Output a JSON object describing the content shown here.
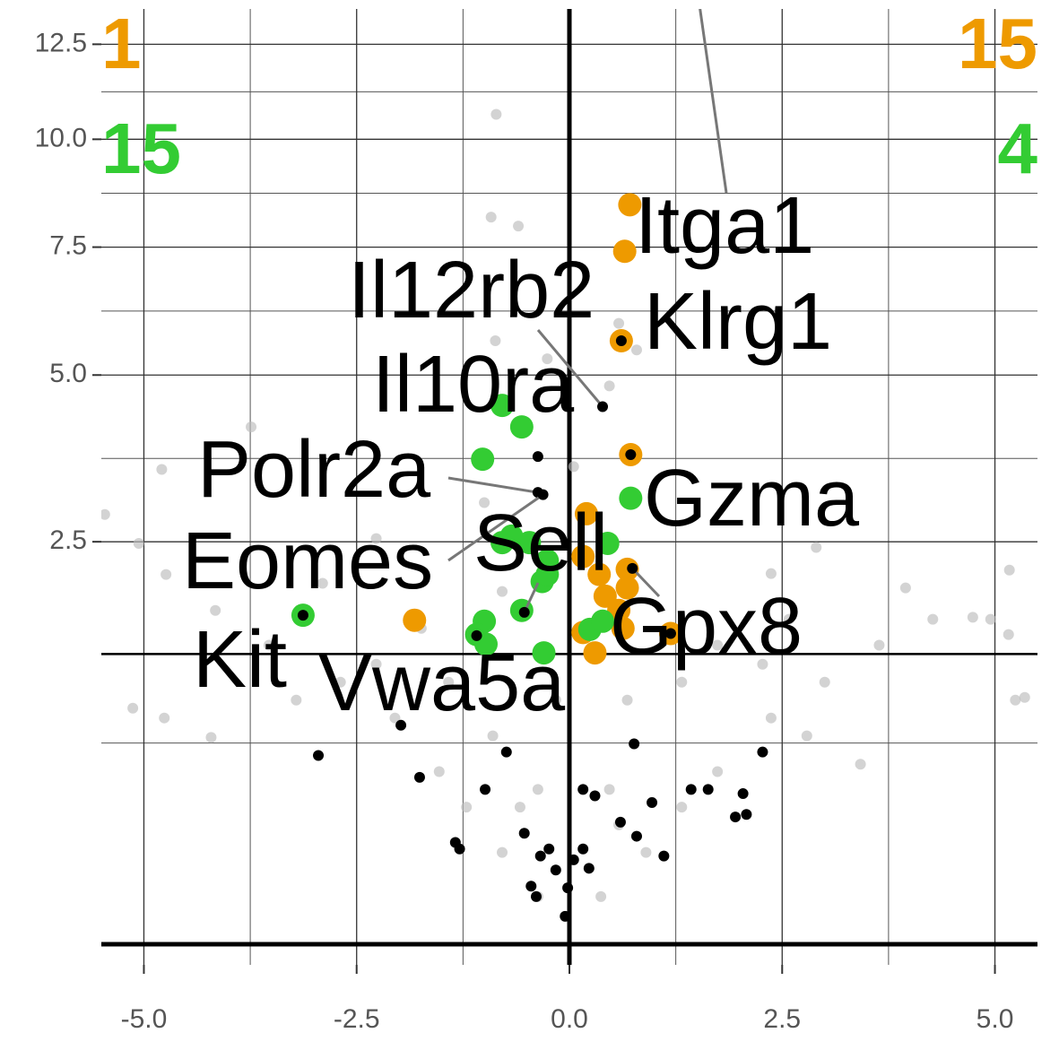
{
  "chart_data": {
    "type": "volcano",
    "xlim": [
      -5.5,
      5.5
    ],
    "ylim": [
      0,
      13.5
    ],
    "yscale": "sqrt",
    "xticks": [
      {
        "value": -5,
        "label": "-5.0"
      },
      -2.5,
      {
        "value": 0,
        "label": "0.0"
      },
      2.5,
      {
        "value": 5,
        "label": "5.0"
      }
    ],
    "yticks": [
      2.5,
      {
        "value": 5,
        "label": "5.0"
      },
      7.5,
      {
        "value": 10,
        "label": "10.0"
      },
      12.5
    ],
    "grid": true,
    "hline": 1.3,
    "series": [
      {
        "color": "#bbbbbb",
        "size": 6,
        "x": [
          -0.86,
          -0.92,
          -0.6,
          -5.46,
          -5.06,
          -4.79,
          -3.74,
          5.17,
          4.74,
          4.95,
          5.16,
          5.24,
          5.35,
          -5.13,
          -4.76,
          -4.21,
          3.42,
          2.9,
          3.95,
          -0.87,
          0.79,
          0.58,
          -4.74,
          -4.16,
          -3.53,
          -2.69,
          -2.05,
          -1.53,
          -1.21,
          -0.79,
          -0.37,
          0.37,
          0.9,
          1.32,
          1.74,
          2.37,
          3.0,
          3.64,
          4.27,
          -0.9,
          -0.16,
          0.68,
          -1.42,
          1.32,
          -0.37,
          0.47,
          -1.74,
          1.74,
          -0.79,
          0.68,
          -2.27,
          2.27,
          -1.0,
          0.05,
          -3.21,
          2.79,
          -0.58,
          0.58,
          -2.9,
          2.58,
          -0.26,
          0.47,
          -2.27,
          2.37
        ],
        "values": [
          10.63,
          8.16,
          7.96,
          2.85,
          2.48,
          3.48,
          4.13,
          2.16,
          1.65,
          1.63,
          1.48,
          0.92,
          0.94,
          0.86,
          0.79,
          0.66,
          0.5,
          2.43,
          1.96,
          5.62,
          5.45,
          5.95,
          2.11,
          1.72,
          1.38,
          1.06,
          0.79,
          0.46,
          0.29,
          0.13,
          0.035,
          0.035,
          0.13,
          0.29,
          0.46,
          0.79,
          1.06,
          1.38,
          1.63,
          0.67,
          0.92,
          0.92,
          1.06,
          1.06,
          0.37,
          0.37,
          1.54,
          1.38,
          1.92,
          1.54,
          1.21,
          1.21,
          3.01,
          3.52,
          0.92,
          0.67,
          0.29,
          0.22,
          2.01,
          1.63,
          5.29,
          4.81,
          2.54,
          2.12
        ]
      },
      {
        "color": "#ee9a00",
        "size": 13,
        "x": [
          0.71,
          0.65,
          0.61,
          0.72,
          0.2,
          0.16,
          0.35,
          0.68,
          0.42,
          0.68,
          0.16,
          0.3,
          -1.82,
          1.19,
          0.58,
          0.63
        ],
        "values": [
          8.44,
          7.41,
          5.62,
          3.7,
          2.86,
          2.32,
          2.11,
          2.17,
          1.87,
          1.96,
          1.5,
          1.31,
          1.62,
          1.49,
          1.72,
          1.54
        ]
      },
      {
        "color": "#33cc33",
        "size": 13,
        "x": [
          -0.79,
          -0.56,
          -1.02,
          -0.68,
          -0.79,
          -0.26,
          -0.32,
          -0.56,
          -3.13,
          -1.0,
          -1.09,
          -0.98,
          -0.3,
          -0.26,
          -0.47,
          0.72,
          0.45,
          0.24,
          0.39
        ],
        "values": [
          4.48,
          4.13,
          3.63,
          2.57,
          2.49,
          2.27,
          2.03,
          1.72,
          1.67,
          1.61,
          1.48,
          1.39,
          1.31,
          2.11,
          2.49,
          3.07,
          2.48,
          1.53,
          1.61
        ]
      },
      {
        "color": "#000000",
        "size": 6,
        "x": [
          -1.98,
          -2.95,
          -1.76,
          -0.74,
          0.76,
          2.27,
          -0.99,
          0.16,
          0.3,
          1.43,
          1.63,
          2.04,
          0.97,
          0.6,
          1.95,
          2.08,
          -1.34,
          -1.29,
          -0.53,
          0.16,
          0.05,
          -0.24,
          0.79,
          1.11,
          -0.45,
          -0.39,
          -0.16,
          0.23,
          -0.02,
          -0.34,
          -0.05,
          1.19
        ],
        "values": [
          0.74,
          0.55,
          0.43,
          0.57,
          0.62,
          0.57,
          0.37,
          0.37,
          0.34,
          0.37,
          0.37,
          0.35,
          0.31,
          0.23,
          0.25,
          0.26,
          0.16,
          0.14,
          0.19,
          0.14,
          0.11,
          0.14,
          0.18,
          0.12,
          0.052,
          0.035,
          0.085,
          0.089,
          0.049,
          0.12,
          0.012,
          1.49
        ]
      }
    ],
    "genes": [
      {
        "text": "Itga1",
        "x": 1.45,
        "y": 15
      },
      {
        "text": "Klrg1",
        "x": 0.61,
        "y": 5.62
      },
      {
        "text": "Il12rb2",
        "x": 0.39,
        "y": 4.46
      },
      {
        "text": "Il10ra",
        "x": -0.37,
        "y": 3.67
      },
      {
        "text": "Polr2a",
        "x": -0.37,
        "y": 3.15
      },
      {
        "text": "Eomes",
        "x": -0.31,
        "y": 3.12
      },
      {
        "text": "Sell",
        "x": -0.53,
        "y": 1.7
      },
      {
        "text": "Gzma",
        "x": 0.72,
        "y": 3.7
      },
      {
        "text": "Gpx8",
        "x": 0.74,
        "y": 2.18
      },
      {
        "text": "Kit",
        "x": -3.13,
        "y": 1.67
      },
      {
        "text": "Vwa5a",
        "x": -1.09,
        "y": 1.47
      }
    ],
    "annotations": [
      {
        "text": "1",
        "color": "#ee9a00",
        "corner": "top-left"
      },
      {
        "text": "15",
        "color": "#33cc33",
        "corner": "top-left"
      },
      {
        "text": "15",
        "color": "#ee9a00",
        "corner": "top-right"
      },
      {
        "text": "4",
        "color": "#33cc33",
        "corner": "top-right"
      }
    ]
  }
}
